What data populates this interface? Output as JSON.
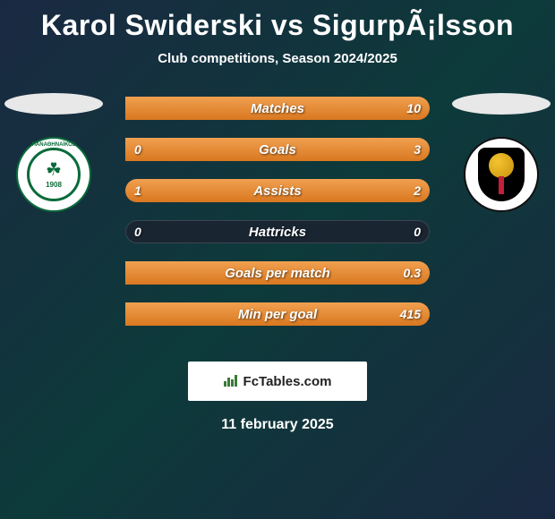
{
  "title": "Karol Swiderski vs SigurpÃ¡lsson",
  "subtitle": "Club competitions, Season 2024/2025",
  "date": "11 february 2025",
  "footer_brand": "FcTables.com",
  "colors": {
    "bar_fill_top": "#f0a050",
    "bar_fill_bottom": "#d97820",
    "bar_bg": "#1a2532",
    "page_bg_a": "#1a2942",
    "page_bg_b": "#0d3a3a",
    "text": "#ffffff"
  },
  "player_left": {
    "club_logo_name": "panathinaikos-logo",
    "clover_glyph": "☘",
    "founded": "1908"
  },
  "player_right": {
    "club_logo_name": "vikingur-logo"
  },
  "stats": [
    {
      "label": "Matches",
      "left_text": "",
      "right_text": "10",
      "left_pct": 0,
      "right_pct": 100
    },
    {
      "label": "Goals",
      "left_text": "0",
      "right_text": "3",
      "left_pct": 0,
      "right_pct": 100
    },
    {
      "label": "Assists",
      "left_text": "1",
      "right_text": "2",
      "left_pct": 33,
      "right_pct": 67
    },
    {
      "label": "Hattricks",
      "left_text": "0",
      "right_text": "0",
      "left_pct": 0,
      "right_pct": 0
    },
    {
      "label": "Goals per match",
      "left_text": "",
      "right_text": "0.3",
      "left_pct": 0,
      "right_pct": 100
    },
    {
      "label": "Min per goal",
      "left_text": "",
      "right_text": "415",
      "left_pct": 0,
      "right_pct": 100
    }
  ]
}
